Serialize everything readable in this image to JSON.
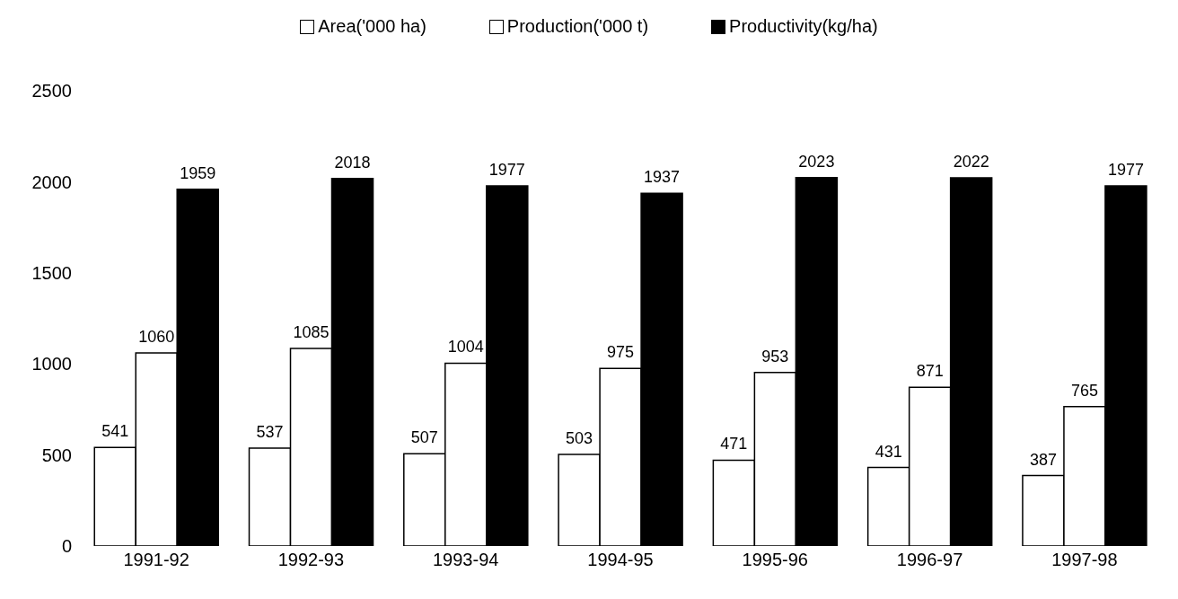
{
  "chart_data": {
    "type": "bar",
    "categories": [
      "1991-92",
      "1992-93",
      "1993-94",
      "1994-95",
      "1995-96",
      "1996-97",
      "1997-98"
    ],
    "series": [
      {
        "name": "Area('000 ha)",
        "color": "#ffffff",
        "values": [
          541,
          537,
          507,
          503,
          471,
          431,
          387
        ]
      },
      {
        "name": "Production('000 t)",
        "color": "#ffffff",
        "values": [
          1060,
          1085,
          1004,
          975,
          953,
          871,
          765
        ]
      },
      {
        "name": "Productivity(kg/ha)",
        "color": "#000000",
        "values": [
          1959,
          2018,
          1977,
          1937,
          2023,
          2022,
          1977
        ]
      }
    ],
    "ylim": [
      0,
      2500
    ],
    "yticks": [
      0,
      500,
      1000,
      1500,
      2000,
      2500
    ],
    "data_labels": true,
    "legend": "top",
    "grid": false
  }
}
